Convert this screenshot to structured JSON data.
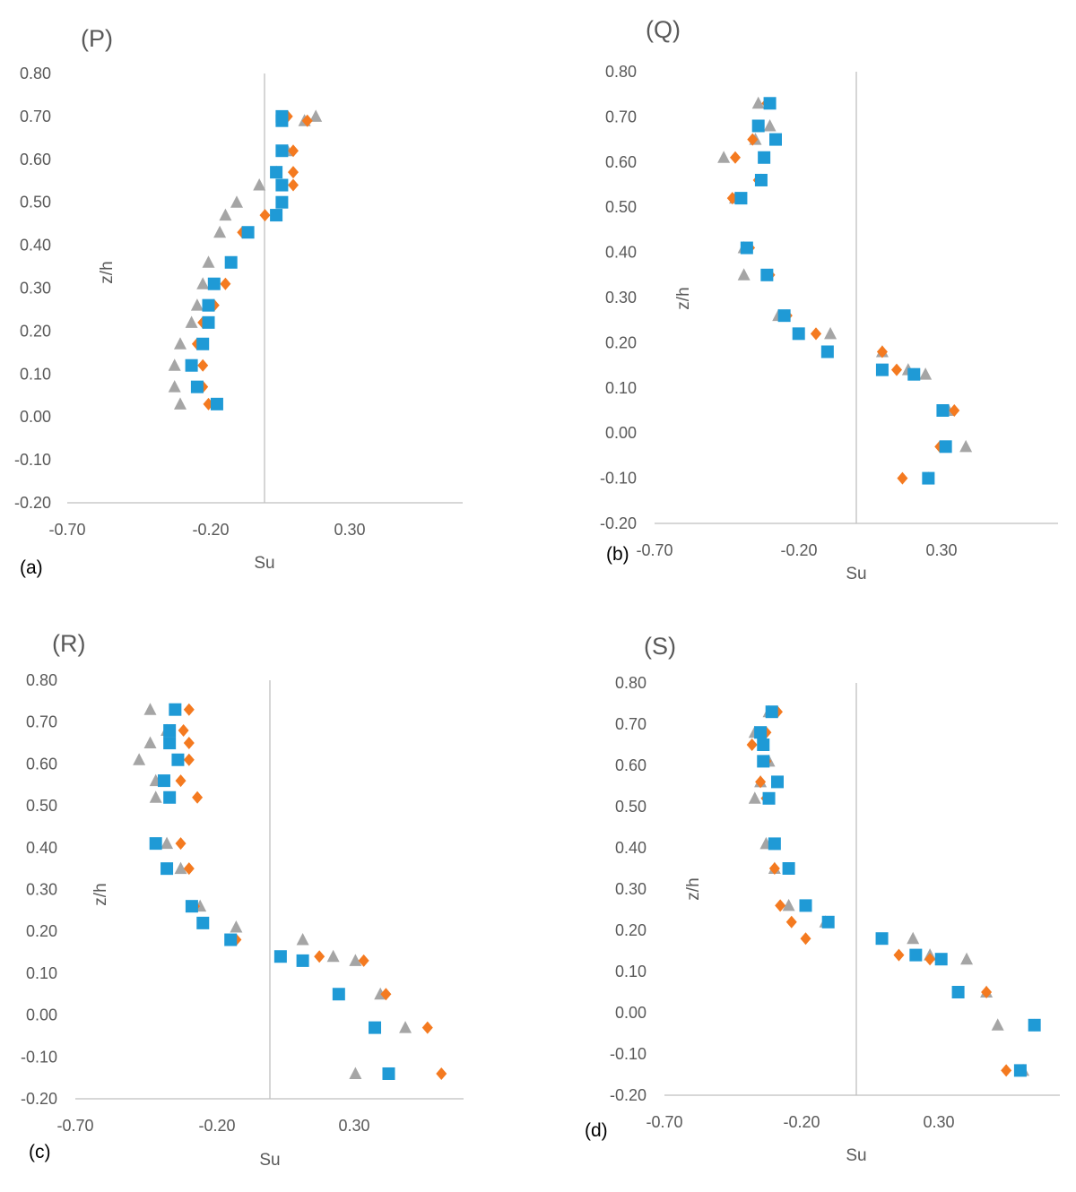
{
  "colors": {
    "s1": "#1f9ad6",
    "s2": "#f47a20",
    "s3": "#a5a5a5",
    "axis": "#bfbfbf",
    "text": "#595959"
  },
  "chart_data": [
    {
      "type": "scatter",
      "title": "(P)",
      "sublabel": "(a)",
      "xlabel": "Su",
      "ylabel": "z/h",
      "xlim": [
        -0.7,
        0.7
      ],
      "ylim": [
        -0.2,
        0.8
      ],
      "xticks": [
        "-0.70",
        "-0.20",
        "0.30"
      ],
      "yticks": [
        "-0.20",
        "-0.10",
        "0.00",
        "0.10",
        "0.20",
        "0.30",
        "0.40",
        "0.50",
        "0.60",
        "0.70",
        "0.80"
      ],
      "series": [
        {
          "name": "square",
          "x": [
            0.06,
            0.06,
            0.06,
            0.04,
            0.06,
            0.06,
            0.04,
            -0.06,
            -0.12,
            -0.18,
            -0.2,
            -0.2,
            -0.22,
            -0.26,
            -0.24,
            -0.17
          ],
          "y": [
            0.7,
            0.69,
            0.62,
            0.57,
            0.54,
            0.5,
            0.47,
            0.43,
            0.36,
            0.31,
            0.26,
            0.22,
            0.17,
            0.12,
            0.07,
            0.03
          ]
        },
        {
          "name": "diamond",
          "x": [
            0.08,
            0.15,
            0.1,
            0.1,
            0.1,
            0.06,
            0.0,
            -0.08,
            -0.12,
            -0.14,
            -0.18,
            -0.22,
            -0.24,
            -0.22,
            -0.22,
            -0.2
          ],
          "y": [
            0.7,
            0.69,
            0.62,
            0.57,
            0.54,
            0.5,
            0.47,
            0.43,
            0.36,
            0.31,
            0.26,
            0.22,
            0.17,
            0.12,
            0.07,
            0.03
          ]
        },
        {
          "name": "triangle",
          "x": [
            0.18,
            0.14,
            0.08,
            0.04,
            -0.02,
            -0.1,
            -0.14,
            -0.16,
            -0.2,
            -0.22,
            -0.24,
            -0.26,
            -0.3,
            -0.32,
            -0.32,
            -0.3
          ],
          "y": [
            0.7,
            0.69,
            0.62,
            0.57,
            0.54,
            0.5,
            0.47,
            0.43,
            0.36,
            0.31,
            0.26,
            0.22,
            0.17,
            0.12,
            0.07,
            0.03
          ]
        }
      ]
    },
    {
      "type": "scatter",
      "title": "(Q)",
      "sublabel": "(b)",
      "xlabel": "Su",
      "ylabel": "z/h",
      "xlim": [
        -0.7,
        0.7
      ],
      "ylim": [
        -0.2,
        0.8
      ],
      "xticks": [
        "-0.70",
        "-0.20",
        "0.30"
      ],
      "yticks": [
        "-0.20",
        "-0.10",
        "0.00",
        "0.10",
        "0.20",
        "0.30",
        "0.40",
        "0.50",
        "0.60",
        "0.70",
        "0.80"
      ],
      "series": [
        {
          "name": "square",
          "x": [
            -0.3,
            -0.34,
            -0.28,
            -0.32,
            -0.33,
            -0.4,
            -0.38,
            -0.31,
            -0.25,
            -0.2,
            -0.1,
            0.09,
            0.2,
            0.3,
            0.31,
            0.25
          ],
          "y": [
            0.73,
            0.68,
            0.65,
            0.61,
            0.56,
            0.52,
            0.41,
            0.35,
            0.26,
            0.22,
            0.18,
            0.14,
            0.13,
            0.05,
            -0.03,
            -0.1
          ]
        },
        {
          "name": "diamond",
          "x": [
            -0.31,
            -0.34,
            -0.36,
            -0.42,
            -0.34,
            -0.43,
            -0.37,
            -0.3,
            -0.24,
            -0.14,
            -0.14,
            0.09,
            0.14,
            0.2,
            0.34,
            0.29,
            0.16
          ],
          "y": [
            0.73,
            0.68,
            0.65,
            0.61,
            0.56,
            0.52,
            0.41,
            0.35,
            0.26,
            0.22,
            0.22,
            0.18,
            0.14,
            0.13,
            0.05,
            -0.03,
            -0.1
          ]
        },
        {
          "name": "triangle",
          "x": [
            -0.34,
            -0.3,
            -0.35,
            -0.46,
            -0.33,
            -0.42,
            -0.39,
            -0.39,
            -0.27,
            -0.09,
            0.09,
            0.18,
            0.24,
            0.32,
            0.38,
            0.25
          ],
          "y": [
            0.73,
            0.68,
            0.65,
            0.61,
            0.56,
            0.52,
            0.41,
            0.35,
            0.26,
            0.22,
            0.18,
            0.14,
            0.13,
            0.05,
            -0.03,
            -0.1
          ]
        }
      ]
    },
    {
      "type": "scatter",
      "title": "(R)",
      "sublabel": "(c)",
      "xlabel": "Su",
      "ylabel": "z/h",
      "xlim": [
        -0.7,
        0.7
      ],
      "ylim": [
        -0.2,
        0.8
      ],
      "xticks": [
        "-0.70",
        "-0.20",
        "0.30"
      ],
      "yticks": [
        "-0.20",
        "-0.10",
        "0.00",
        "0.10",
        "0.20",
        "0.30",
        "0.40",
        "0.50",
        "0.60",
        "0.70",
        "0.80"
      ],
      "series": [
        {
          "name": "square",
          "x": [
            -0.34,
            -0.36,
            -0.36,
            -0.33,
            -0.38,
            -0.36,
            -0.41,
            -0.37,
            -0.28,
            -0.24,
            -0.14,
            0.04,
            0.12,
            0.25,
            0.38,
            0.43
          ],
          "y": [
            0.73,
            0.68,
            0.65,
            0.61,
            0.56,
            0.52,
            0.41,
            0.35,
            0.26,
            0.22,
            0.18,
            0.14,
            0.13,
            0.05,
            -0.03,
            -0.14
          ]
        },
        {
          "name": "diamond",
          "x": [
            -0.29,
            -0.31,
            -0.29,
            -0.29,
            -0.32,
            -0.26,
            -0.32,
            -0.29,
            -0.27,
            -0.24,
            -0.12,
            0.18,
            0.34,
            0.42,
            0.57,
            0.62
          ],
          "y": [
            0.73,
            0.68,
            0.65,
            0.61,
            0.56,
            0.52,
            0.41,
            0.35,
            0.26,
            0.22,
            0.18,
            0.14,
            0.13,
            0.05,
            -0.03,
            -0.14
          ]
        },
        {
          "name": "triangle",
          "x": [
            -0.43,
            -0.37,
            -0.43,
            -0.47,
            -0.41,
            -0.41,
            -0.37,
            -0.32,
            -0.25,
            -0.12,
            0.12,
            0.23,
            0.31,
            0.4,
            0.49,
            0.31
          ],
          "y": [
            0.73,
            0.68,
            0.65,
            0.61,
            0.56,
            0.52,
            0.41,
            0.35,
            0.26,
            0.21,
            0.18,
            0.14,
            0.13,
            0.05,
            -0.03,
            -0.14
          ]
        }
      ]
    },
    {
      "type": "scatter",
      "title": "(S)",
      "sublabel": "(d)",
      "xlabel": "Su",
      "ylabel": "z/h",
      "xlim": [
        -0.7,
        0.7
      ],
      "ylim": [
        -0.2,
        0.8
      ],
      "xticks": [
        "-0.70",
        "-0.20",
        "0.30"
      ],
      "yticks": [
        "-0.20",
        "-0.10",
        "0.00",
        "0.10",
        "0.20",
        "0.30",
        "0.40",
        "0.50",
        "0.60",
        "0.70",
        "0.80"
      ],
      "series": [
        {
          "name": "square",
          "x": [
            -0.32,
            -0.36,
            -0.35,
            -0.35,
            -0.3,
            -0.33,
            -0.31,
            -0.26,
            -0.2,
            -0.12,
            0.07,
            0.19,
            0.28,
            0.34,
            0.61,
            0.56
          ],
          "y": [
            0.73,
            0.68,
            0.65,
            0.61,
            0.56,
            0.52,
            0.41,
            0.35,
            0.26,
            0.22,
            0.18,
            0.14,
            0.13,
            0.05,
            -0.03,
            -0.14
          ]
        },
        {
          "name": "diamond",
          "x": [
            -0.3,
            -0.34,
            -0.39,
            -0.34,
            -0.36,
            -0.34,
            -0.31,
            -0.31,
            -0.29,
            -0.25,
            -0.2,
            0.13,
            0.24,
            0.44,
            0.61,
            0.51
          ],
          "y": [
            0.73,
            0.68,
            0.65,
            0.61,
            0.56,
            0.52,
            0.41,
            0.35,
            0.26,
            0.22,
            0.18,
            0.14,
            0.13,
            0.05,
            -0.03,
            -0.14
          ]
        },
        {
          "name": "triangle",
          "x": [
            -0.33,
            -0.38,
            -0.35,
            -0.33,
            -0.36,
            -0.38,
            -0.34,
            -0.31,
            -0.26,
            -0.13,
            0.18,
            0.24,
            0.37,
            0.44,
            0.48,
            0.57
          ],
          "y": [
            0.73,
            0.68,
            0.65,
            0.61,
            0.56,
            0.52,
            0.41,
            0.35,
            0.26,
            0.22,
            0.18,
            0.14,
            0.13,
            0.05,
            -0.03,
            -0.14
          ]
        }
      ]
    }
  ]
}
